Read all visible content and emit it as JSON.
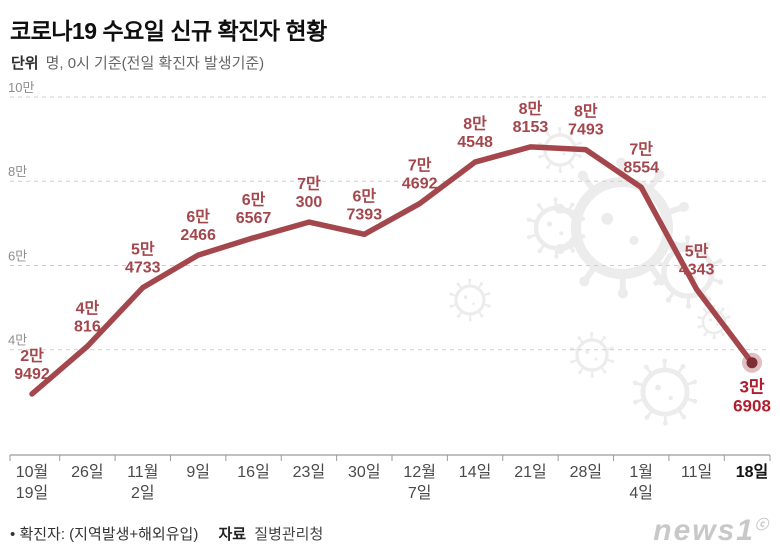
{
  "header": {
    "title": "코로나19 수요일 신규 확진자 현황",
    "unit_label": "단위",
    "unit_text": "명, 0시 기준(전일 확진자 발생기준)"
  },
  "chart_data": {
    "type": "line",
    "title": "코로나19 수요일 신규 확진자 현황",
    "unit": "명",
    "categories": [
      [
        "10월",
        "19일"
      ],
      [
        "26일"
      ],
      [
        "11월",
        "2일"
      ],
      [
        "9일"
      ],
      [
        "16일"
      ],
      [
        "23일"
      ],
      [
        "30일"
      ],
      [
        "12월",
        "7일"
      ],
      [
        "14일"
      ],
      [
        "21일"
      ],
      [
        "28일"
      ],
      [
        "1월",
        "4일"
      ],
      [
        "11일"
      ],
      [
        "18일"
      ]
    ],
    "values": [
      29492,
      40816,
      54733,
      62466,
      66567,
      70300,
      67393,
      74692,
      84548,
      88153,
      87493,
      78554,
      54343,
      36908
    ],
    "point_labels": [
      [
        "2만",
        "9492"
      ],
      [
        "4만",
        "816"
      ],
      [
        "5만",
        "4733"
      ],
      [
        "6만",
        "2466"
      ],
      [
        "6만",
        "6567"
      ],
      [
        "7만",
        "300"
      ],
      [
        "6만",
        "7393"
      ],
      [
        "7만",
        "4692"
      ],
      [
        "8만",
        "4548"
      ],
      [
        "8만",
        "8153"
      ],
      [
        "8만",
        "7493"
      ],
      [
        "7만",
        "8554"
      ],
      [
        "5만",
        "4343"
      ],
      [
        "3만",
        "6908"
      ]
    ],
    "y_axis": {
      "min_value": 15000,
      "max_value": 100000,
      "ticks": [
        {
          "label": "10만",
          "value": 100000
        },
        {
          "label": "8만",
          "value": 80000
        },
        {
          "label": "6만",
          "value": 60000
        },
        {
          "label": "4만",
          "value": 40000
        }
      ]
    },
    "grid": true,
    "legend": "none",
    "line_color": "#a4474d",
    "label_color": "#a4474d",
    "last_label_color": "#b01e2e",
    "marker_color": "#7e2d34"
  },
  "footer": {
    "note_bullet": "•",
    "note": "확진자: (지역발생+해외유입)",
    "source_label": "자료",
    "source": "질병관리청"
  },
  "watermark": "news1"
}
